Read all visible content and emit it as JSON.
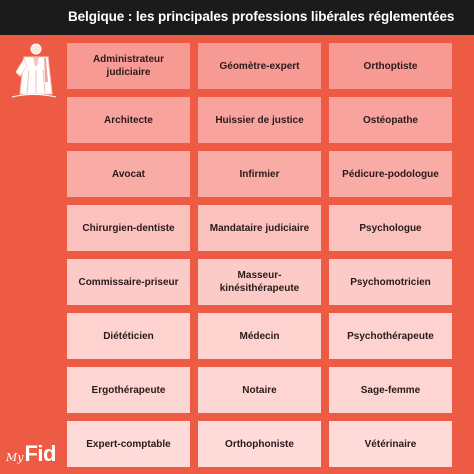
{
  "title": "Belgique : les principales professions libérales réglementées",
  "professions": [
    [
      "Administrateur judiciaire",
      "Géomètre-expert",
      "Orthoptiste"
    ],
    [
      "Architecte",
      "Huissier de justice",
      "Ostéopathe"
    ],
    [
      "Avocat",
      "Infirmier",
      "Pédicure-podologue"
    ],
    [
      "Chirurgien-dentiste",
      "Mandataire judiciaire",
      "Psychologue"
    ],
    [
      "Commissaire-priseur",
      "Masseur-kinésithérapeute",
      "Psychomotricien"
    ],
    [
      "Diététicien",
      "Médecin",
      "Psychothérapeute"
    ],
    [
      "Ergothérapeute",
      "Notaire",
      "Sage-femme"
    ],
    [
      "Expert-comptable",
      "Orthophoniste",
      "Vétérinaire"
    ]
  ],
  "logo": {
    "prefix": "My",
    "name": "Fid"
  },
  "colors": {
    "header_bg": "#1b1b1b",
    "page_bg": "#ee5b45",
    "cell_text": "#2a1a1a"
  }
}
